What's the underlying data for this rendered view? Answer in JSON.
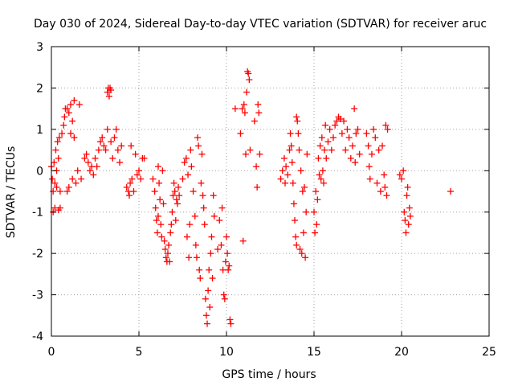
{
  "chart_data": {
    "type": "scatter",
    "title": "Day 030 of 2024, Sidereal Day-to-day VTEC variation (SDTVAR) for receiver aruc",
    "xlabel": "GPS time / hours",
    "ylabel": "SDTVAR / TECUs",
    "xlim": [
      0,
      25
    ],
    "ylim": [
      -4,
      3
    ],
    "x_ticks": [
      0,
      5,
      10,
      15,
      20,
      25
    ],
    "x_tick_labels": [
      "0",
      "5",
      "10",
      "15",
      "20",
      "25"
    ],
    "y_ticks": [
      -4,
      -3,
      -2,
      -1,
      0,
      1,
      2,
      3
    ],
    "y_tick_labels": [
      "-4",
      "-3",
      "-2",
      "-1",
      "0",
      "1",
      "2",
      "3"
    ],
    "grid": true,
    "marker": "+",
    "marker_color": "#ff0000",
    "series": [
      {
        "name": "SDTVAR",
        "points": [
          [
            0.0,
            0.1
          ],
          [
            0.05,
            -0.2
          ],
          [
            0.1,
            -0.5
          ],
          [
            0.1,
            -1.0
          ],
          [
            0.15,
            0.2
          ],
          [
            0.2,
            -0.3
          ],
          [
            0.2,
            -0.9
          ],
          [
            0.25,
            0.5
          ],
          [
            0.3,
            0.0
          ],
          [
            0.3,
            -0.4
          ],
          [
            0.35,
            0.7
          ],
          [
            0.4,
            0.3
          ],
          [
            0.4,
            -0.95
          ],
          [
            0.45,
            0.8
          ],
          [
            0.5,
            -0.5
          ],
          [
            0.5,
            -0.9
          ],
          [
            0.6,
            0.9
          ],
          [
            0.7,
            1.1
          ],
          [
            0.75,
            1.3
          ],
          [
            0.8,
            1.5
          ],
          [
            0.9,
            1.5
          ],
          [
            0.9,
            -0.5
          ],
          [
            1.0,
            1.4
          ],
          [
            1.0,
            -0.4
          ],
          [
            1.1,
            0.9
          ],
          [
            1.1,
            1.6
          ],
          [
            1.2,
            1.2
          ],
          [
            1.2,
            -0.2
          ],
          [
            1.3,
            1.7
          ],
          [
            1.3,
            0.8
          ],
          [
            1.4,
            -0.3
          ],
          [
            1.5,
            0.0
          ],
          [
            1.6,
            1.6
          ],
          [
            1.7,
            -0.2
          ],
          [
            1.9,
            0.3
          ],
          [
            2.0,
            0.4
          ],
          [
            2.1,
            0.2
          ],
          [
            2.2,
            0.0
          ],
          [
            2.3,
            0.1
          ],
          [
            2.4,
            -0.1
          ],
          [
            2.5,
            0.3
          ],
          [
            2.6,
            0.1
          ],
          [
            2.7,
            0.5
          ],
          [
            2.8,
            0.7
          ],
          [
            2.9,
            0.8
          ],
          [
            3.0,
            0.6
          ],
          [
            3.1,
            0.5
          ],
          [
            3.2,
            1.0
          ],
          [
            3.2,
            1.9
          ],
          [
            3.25,
            2.0
          ],
          [
            3.3,
            1.8
          ],
          [
            3.35,
            2.0
          ],
          [
            3.4,
            0.7
          ],
          [
            3.4,
            1.95
          ],
          [
            3.5,
            0.3
          ],
          [
            3.6,
            0.8
          ],
          [
            3.7,
            1.0
          ],
          [
            3.8,
            0.5
          ],
          [
            3.9,
            0.2
          ],
          [
            4.0,
            0.6
          ],
          [
            4.3,
            -0.4
          ],
          [
            4.4,
            -0.5
          ],
          [
            4.45,
            -0.6
          ],
          [
            4.5,
            -0.3
          ],
          [
            4.55,
            0.6
          ],
          [
            4.6,
            -0.2
          ],
          [
            4.7,
            -0.5
          ],
          [
            4.8,
            0.4
          ],
          [
            4.9,
            -0.1
          ],
          [
            5.0,
            0.0
          ],
          [
            5.1,
            -0.2
          ],
          [
            5.2,
            0.3
          ],
          [
            5.3,
            0.3
          ],
          [
            5.8,
            -0.2
          ],
          [
            5.9,
            -0.5
          ],
          [
            5.95,
            -0.9
          ],
          [
            6.0,
            -1.2
          ],
          [
            6.05,
            -1.5
          ],
          [
            6.1,
            -1.1
          ],
          [
            6.1,
            0.1
          ],
          [
            6.15,
            -0.3
          ],
          [
            6.2,
            -0.7
          ],
          [
            6.25,
            -1.3
          ],
          [
            6.3,
            -1.6
          ],
          [
            6.35,
            0.0
          ],
          [
            6.4,
            -0.8
          ],
          [
            6.45,
            -1.7
          ],
          [
            6.5,
            -1.9
          ],
          [
            6.55,
            -2.1
          ],
          [
            6.6,
            -2.2
          ],
          [
            6.65,
            -2.0
          ],
          [
            6.7,
            -1.8
          ],
          [
            6.75,
            -2.2
          ],
          [
            6.8,
            -1.5
          ],
          [
            6.85,
            -1.3
          ],
          [
            6.9,
            -1.0
          ],
          [
            6.95,
            -0.6
          ],
          [
            7.0,
            -0.3
          ],
          [
            7.05,
            -0.5
          ],
          [
            7.1,
            -1.2
          ],
          [
            7.15,
            -0.7
          ],
          [
            7.2,
            -0.8
          ],
          [
            7.25,
            -0.4
          ],
          [
            7.3,
            -0.6
          ],
          [
            7.5,
            -0.2
          ],
          [
            7.6,
            0.2
          ],
          [
            7.7,
            0.3
          ],
          [
            7.75,
            -1.6
          ],
          [
            7.8,
            -0.1
          ],
          [
            7.85,
            -2.1
          ],
          [
            7.9,
            -1.3
          ],
          [
            7.95,
            0.5
          ],
          [
            8.0,
            0.1
          ],
          [
            8.1,
            -0.5
          ],
          [
            8.2,
            -1.1
          ],
          [
            8.25,
            -1.8
          ],
          [
            8.3,
            -2.1
          ],
          [
            8.35,
            0.8
          ],
          [
            8.4,
            0.6
          ],
          [
            8.45,
            -2.4
          ],
          [
            8.5,
            -2.6
          ],
          [
            8.55,
            -0.3
          ],
          [
            8.6,
            0.4
          ],
          [
            8.65,
            -0.6
          ],
          [
            8.7,
            -0.9
          ],
          [
            8.75,
            -1.3
          ],
          [
            8.8,
            -3.1
          ],
          [
            8.85,
            -3.5
          ],
          [
            8.9,
            -3.7
          ],
          [
            8.95,
            -2.9
          ],
          [
            9.0,
            -2.4
          ],
          [
            9.05,
            -3.3
          ],
          [
            9.1,
            -2.0
          ],
          [
            9.15,
            -1.6
          ],
          [
            9.2,
            -2.6
          ],
          [
            9.25,
            -0.6
          ],
          [
            9.3,
            -1.1
          ],
          [
            9.5,
            -1.9
          ],
          [
            9.6,
            -1.2
          ],
          [
            9.7,
            -1.8
          ],
          [
            9.75,
            -0.9
          ],
          [
            9.8,
            -2.4
          ],
          [
            9.85,
            -3.0
          ],
          [
            9.9,
            -3.1
          ],
          [
            9.95,
            -2.2
          ],
          [
            10.0,
            -1.6
          ],
          [
            10.05,
            -2.0
          ],
          [
            10.1,
            -2.4
          ],
          [
            10.15,
            -2.3
          ],
          [
            10.2,
            -3.6
          ],
          [
            10.25,
            -3.7
          ],
          [
            10.5,
            1.5
          ],
          [
            10.8,
            0.9
          ],
          [
            10.9,
            1.5
          ],
          [
            10.95,
            -1.7
          ],
          [
            11.0,
            1.6
          ],
          [
            11.05,
            1.4
          ],
          [
            11.1,
            0.4
          ],
          [
            11.15,
            1.9
          ],
          [
            11.2,
            2.4
          ],
          [
            11.25,
            2.35
          ],
          [
            11.3,
            2.2
          ],
          [
            11.35,
            0.5
          ],
          [
            11.6,
            1.2
          ],
          [
            11.7,
            0.1
          ],
          [
            11.75,
            -0.4
          ],
          [
            11.8,
            1.6
          ],
          [
            11.85,
            1.4
          ],
          [
            11.9,
            0.4
          ],
          [
            13.1,
            -0.2
          ],
          [
            13.2,
            0.0
          ],
          [
            13.3,
            0.3
          ],
          [
            13.35,
            -0.3
          ],
          [
            13.4,
            0.1
          ],
          [
            13.5,
            -0.1
          ],
          [
            13.6,
            0.5
          ],
          [
            13.65,
            0.9
          ],
          [
            13.7,
            0.6
          ],
          [
            13.75,
            0.2
          ],
          [
            13.8,
            -0.3
          ],
          [
            13.85,
            -0.8
          ],
          [
            13.9,
            -1.2
          ],
          [
            13.95,
            -1.6
          ],
          [
            14.0,
            -1.8
          ],
          [
            14.0,
            1.3
          ],
          [
            14.05,
            1.2
          ],
          [
            14.1,
            0.9
          ],
          [
            14.15,
            0.5
          ],
          [
            14.2,
            -1.9
          ],
          [
            14.25,
            0.0
          ],
          [
            14.3,
            -2.0
          ],
          [
            14.35,
            -0.5
          ],
          [
            14.4,
            -1.5
          ],
          [
            14.45,
            -0.4
          ],
          [
            14.5,
            -2.1
          ],
          [
            14.55,
            -1.0
          ],
          [
            14.6,
            0.4
          ],
          [
            15.0,
            -1.0
          ],
          [
            15.05,
            -1.5
          ],
          [
            15.1,
            -0.5
          ],
          [
            15.15,
            -1.3
          ],
          [
            15.2,
            -0.7
          ],
          [
            15.25,
            0.3
          ],
          [
            15.3,
            -0.1
          ],
          [
            15.35,
            0.6
          ],
          [
            15.4,
            -0.2
          ],
          [
            15.45,
            0.8
          ],
          [
            15.5,
            0.0
          ],
          [
            15.55,
            -0.3
          ],
          [
            15.6,
            0.5
          ],
          [
            15.65,
            1.1
          ],
          [
            15.7,
            0.3
          ],
          [
            15.8,
            0.7
          ],
          [
            15.9,
            1.0
          ],
          [
            16.0,
            0.5
          ],
          [
            16.1,
            0.8
          ],
          [
            16.2,
            1.1
          ],
          [
            16.3,
            1.2
          ],
          [
            16.4,
            1.3
          ],
          [
            16.5,
            1.25
          ],
          [
            16.6,
            0.9
          ],
          [
            16.7,
            1.2
          ],
          [
            16.8,
            0.5
          ],
          [
            16.9,
            1.0
          ],
          [
            17.0,
            0.8
          ],
          [
            17.1,
            0.3
          ],
          [
            17.2,
            0.6
          ],
          [
            17.3,
            1.5
          ],
          [
            17.35,
            0.2
          ],
          [
            17.4,
            0.9
          ],
          [
            17.5,
            1.0
          ],
          [
            17.6,
            0.4
          ],
          [
            18.0,
            0.9
          ],
          [
            18.1,
            0.6
          ],
          [
            18.15,
            0.1
          ],
          [
            18.2,
            -0.2
          ],
          [
            18.3,
            0.4
          ],
          [
            18.4,
            1.0
          ],
          [
            18.5,
            0.8
          ],
          [
            18.6,
            -0.3
          ],
          [
            18.7,
            0.5
          ],
          [
            18.8,
            -0.5
          ],
          [
            18.9,
            0.6
          ],
          [
            19.0,
            -0.1
          ],
          [
            19.05,
            -0.4
          ],
          [
            19.1,
            1.1
          ],
          [
            19.15,
            -0.6
          ],
          [
            19.2,
            1.0
          ],
          [
            19.9,
            -0.1
          ],
          [
            20.0,
            -0.2
          ],
          [
            20.1,
            0.0
          ],
          [
            20.15,
            -1.0
          ],
          [
            20.2,
            -1.2
          ],
          [
            20.25,
            -1.5
          ],
          [
            20.3,
            -0.6
          ],
          [
            20.35,
            -0.4
          ],
          [
            20.4,
            -1.3
          ],
          [
            20.45,
            -0.9
          ],
          [
            20.5,
            -1.1
          ],
          [
            22.8,
            -0.5
          ]
        ]
      }
    ]
  }
}
